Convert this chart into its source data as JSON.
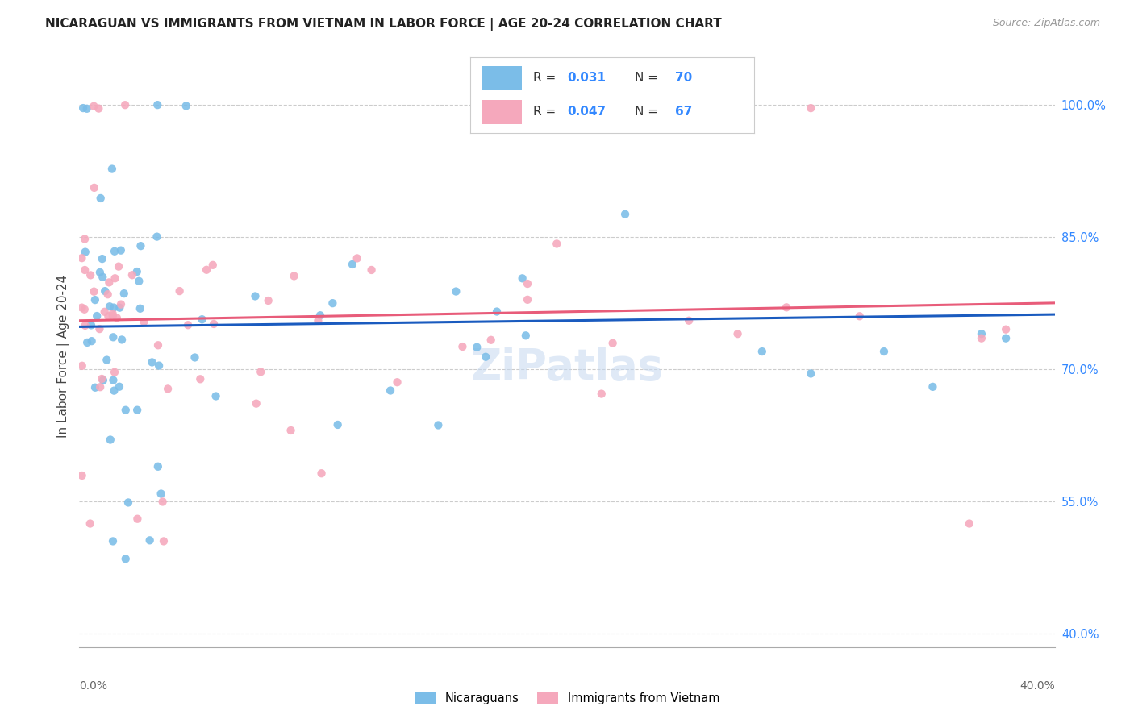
{
  "title": "NICARAGUAN VS IMMIGRANTS FROM VIETNAM IN LABOR FORCE | AGE 20-24 CORRELATION CHART",
  "source": "Source: ZipAtlas.com",
  "ylabel": "In Labor Force | Age 20-24",
  "right_yticks": [
    "100.0%",
    "85.0%",
    "70.0%",
    "55.0%",
    "40.0%"
  ],
  "right_ytick_vals": [
    1.0,
    0.85,
    0.7,
    0.55,
    0.4
  ],
  "xmin": 0.0,
  "xmax": 0.4,
  "ymin": 0.385,
  "ymax": 1.045,
  "blue_color": "#7bbde8",
  "pink_color": "#f5a8bc",
  "trend_blue": "#1a5bbf",
  "trend_pink": "#e85c7a",
  "watermark": "ZiPatlas",
  "blue_trend_x0": 0.0,
  "blue_trend_y0": 0.748,
  "blue_trend_x1": 0.4,
  "blue_trend_y1": 0.762,
  "pink_trend_x0": 0.0,
  "pink_trend_y0": 0.755,
  "pink_trend_x1": 0.4,
  "pink_trend_y1": 0.775
}
